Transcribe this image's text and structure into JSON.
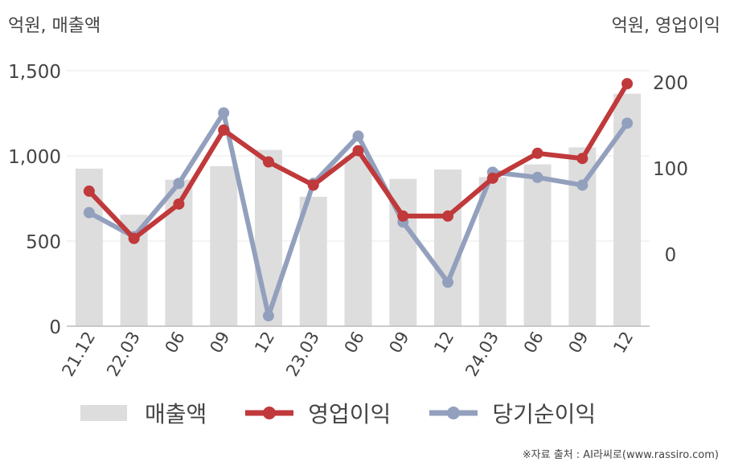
{
  "units": {
    "left": "억원, 매출액",
    "right": "억원, 영업이익"
  },
  "legend": [
    {
      "label": "매출액",
      "kind": "bar",
      "color": "#dddddd"
    },
    {
      "label": "영업이익",
      "kind": "line",
      "color": "#c0393b"
    },
    {
      "label": "당기순이익",
      "kind": "line",
      "color": "#93a0bd"
    }
  ],
  "source": "※자료 출처 : AI라씨로(www.rassiro.com)",
  "chart_data": {
    "type": "bar",
    "categories": [
      "21.12",
      "22.03",
      "06",
      "09",
      "12",
      "23.03",
      "06",
      "09",
      "12",
      "24.03",
      "06",
      "09",
      "12"
    ],
    "left_axis": {
      "ylim": [
        0,
        1500
      ],
      "ticks": [
        0,
        500,
        1000,
        1500
      ],
      "tick_labels": [
        "0",
        "500",
        "1,000",
        "1,500"
      ]
    },
    "right_axis": {
      "ticks": [
        0,
        100,
        200
      ],
      "tick_labels": [
        "0",
        "100",
        "200"
      ]
    },
    "grid": true,
    "legend_position": "bottom",
    "series": [
      {
        "name": "매출액",
        "type": "bar",
        "axis": "left",
        "color": "#dddddd",
        "values": [
          925,
          655,
          860,
          940,
          1035,
          760,
          1000,
          865,
          920,
          875,
          950,
          1050,
          1365
        ]
      },
      {
        "name": "영업이익",
        "type": "line",
        "axis": "right",
        "color": "#c0393b",
        "values": [
          73,
          18,
          58,
          144,
          107,
          80,
          120,
          44,
          44,
          88,
          117,
          111,
          198
        ]
      },
      {
        "name": "당기순이익",
        "type": "line",
        "axis": "right",
        "color": "#93a0bd",
        "values": [
          48,
          20,
          82,
          164,
          -72,
          82,
          137,
          37,
          -33,
          95,
          89,
          80,
          152
        ]
      }
    ]
  }
}
